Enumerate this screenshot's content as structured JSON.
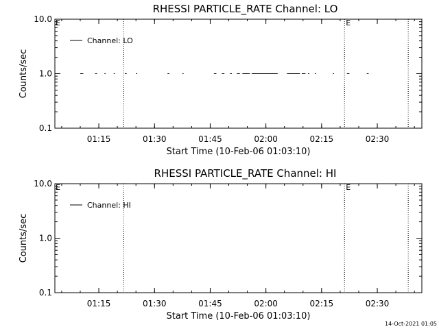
{
  "chart_data": [
    {
      "type": "line",
      "title": "RHESSI PARTICLE_RATE Channel: LO",
      "xlabel": "Start Time (10-Feb-06 01:03:10)",
      "ylabel": "Counts/sec",
      "y_scale": "log",
      "ylim": [
        0.1,
        10.0
      ],
      "xlim": [
        "01:03:10",
        "02:42:00"
      ],
      "x_ticks": [
        "01:15",
        "01:30",
        "01:45",
        "02:00",
        "02:15",
        "02:30"
      ],
      "y_ticks": [
        "0.1",
        "1.0",
        "10.0"
      ],
      "grid": false,
      "legend": {
        "placement": "top-left",
        "entries": [
          "Channel: LO"
        ]
      },
      "vertical_markers": [
        {
          "time": "01:21:40",
          "label": ""
        },
        {
          "time": "02:21:10",
          "label": "E"
        },
        {
          "time": "02:38:20",
          "label": ""
        }
      ],
      "edge_label": "E",
      "series": [
        {
          "name": "Channel: LO",
          "y": 1.0,
          "segments": [
            [
              "01:10:00",
              "01:10:50"
            ],
            [
              "01:14:00",
              "01:14:30"
            ],
            [
              "01:16:30",
              "01:16:50"
            ],
            [
              "01:19:00",
              "01:19:20"
            ],
            [
              "01:22:00",
              "01:22:30"
            ],
            [
              "01:25:00",
              "01:25:20"
            ],
            [
              "01:33:30",
              "01:34:00"
            ],
            [
              "01:37:30",
              "01:37:50"
            ],
            [
              "01:46:00",
              "01:46:40"
            ],
            [
              "01:48:10",
              "01:48:50"
            ],
            [
              "01:50:20",
              "01:50:50"
            ],
            [
              "01:52:10",
              "01:53:00"
            ],
            [
              "01:53:40",
              "01:55:40"
            ],
            [
              "01:56:10",
              "02:03:10"
            ],
            [
              "02:05:40",
              "02:09:10"
            ],
            [
              "02:09:40",
              "02:10:40"
            ],
            [
              "02:11:20",
              "02:11:40"
            ],
            [
              "02:13:10",
              "02:13:30"
            ],
            [
              "02:18:00",
              "02:18:20"
            ],
            [
              "02:21:50",
              "02:22:30"
            ],
            [
              "02:27:10",
              "02:27:40"
            ]
          ]
        }
      ]
    },
    {
      "type": "line",
      "title": "RHESSI PARTICLE_RATE Channel: HI",
      "xlabel": "Start Time (10-Feb-06 01:03:10)",
      "ylabel": "Counts/sec",
      "y_scale": "log",
      "ylim": [
        0.1,
        10.0
      ],
      "xlim": [
        "01:03:10",
        "02:42:00"
      ],
      "x_ticks": [
        "01:15",
        "01:30",
        "01:45",
        "02:00",
        "02:15",
        "02:30"
      ],
      "y_ticks": [
        "0.1",
        "1.0",
        "10.0"
      ],
      "grid": false,
      "legend": {
        "placement": "top-left",
        "entries": [
          "Channel: HI"
        ]
      },
      "vertical_markers": [
        {
          "time": "01:21:40",
          "label": ""
        },
        {
          "time": "02:21:10",
          "label": "E"
        },
        {
          "time": "02:38:20",
          "label": ""
        }
      ],
      "edge_label": "E",
      "series": [
        {
          "name": "Channel: HI",
          "y": 1.0,
          "segments": []
        }
      ]
    }
  ],
  "footer": {
    "timestamp": "14-Oct-2021 01:05"
  }
}
